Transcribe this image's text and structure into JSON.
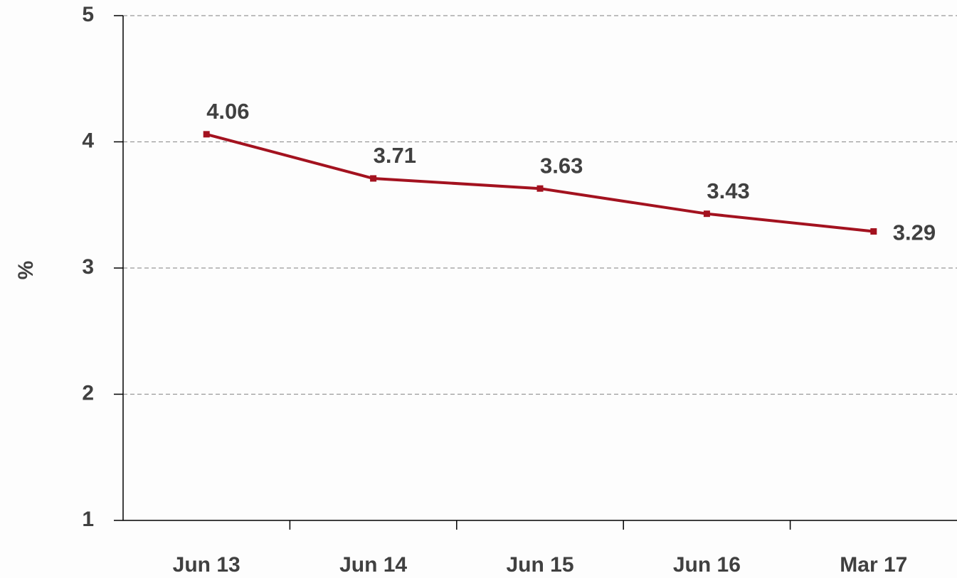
{
  "chart_data": {
    "type": "line",
    "y_label": "%",
    "categories": [
      "Jun 13",
      "Jun 14",
      "Jun 15",
      "Jun 16",
      "Mar 17"
    ],
    "series": [
      {
        "name": "%",
        "color": "#a3121f",
        "values": [
          4.06,
          3.71,
          3.63,
          3.43,
          3.29
        ]
      }
    ],
    "ylim": [
      1,
      5
    ],
    "yticks": [
      1,
      2,
      3,
      4,
      5
    ],
    "grid": true,
    "data_labels": true
  }
}
